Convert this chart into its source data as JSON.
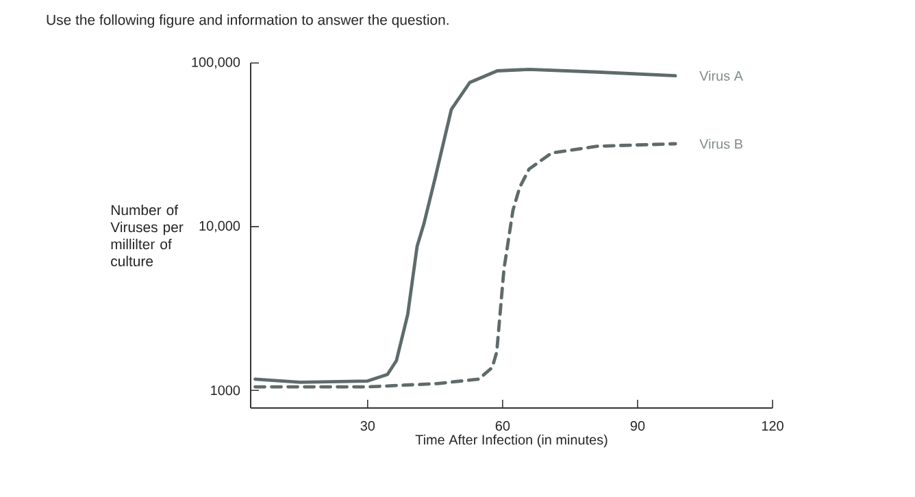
{
  "chart_data": {
    "type": "line",
    "title": "Use the following figure and information to answer the question.",
    "xlabel": "Time After Infection (in minutes)",
    "ylabel": "Number of Viruses per millilter of culture",
    "log": "y",
    "grid": false,
    "legend": false,
    "xlim": [
      4,
      120
    ],
    "ylim": [
      780,
      100000
    ],
    "xticks": [
      30,
      60,
      90,
      120
    ],
    "yticks": [
      {
        "value": 1000,
        "label": "1000"
      },
      {
        "value": 10000,
        "label": "10,000"
      },
      {
        "value": 100000,
        "label": "100,000"
      }
    ],
    "series": [
      {
        "name": "Virus A",
        "color": "#5f6b6b",
        "line_style": "solid",
        "x": [
          5,
          15,
          30,
          34.4,
          36.4,
          38.9,
          41,
          42.5,
          45,
          48.6,
          52.7,
          58.8,
          65.9,
          81,
          98.4
        ],
        "values": [
          1170,
          1120,
          1140,
          1250,
          1520,
          2900,
          7600,
          10400,
          19800,
          52000,
          76000,
          89500,
          91400,
          88000,
          83600
        ]
      },
      {
        "name": "Virus B",
        "color": "#5f6b6b",
        "line_style": "dashed",
        "x": [
          5,
          30,
          45.5,
          54.7,
          57.7,
          58.7,
          60.3,
          62.3,
          63.8,
          65.9,
          70.9,
          81,
          98.4
        ],
        "values": [
          1050,
          1050,
          1100,
          1170,
          1380,
          1720,
          5500,
          12600,
          17400,
          22500,
          28200,
          31000,
          32100
        ]
      }
    ]
  }
}
